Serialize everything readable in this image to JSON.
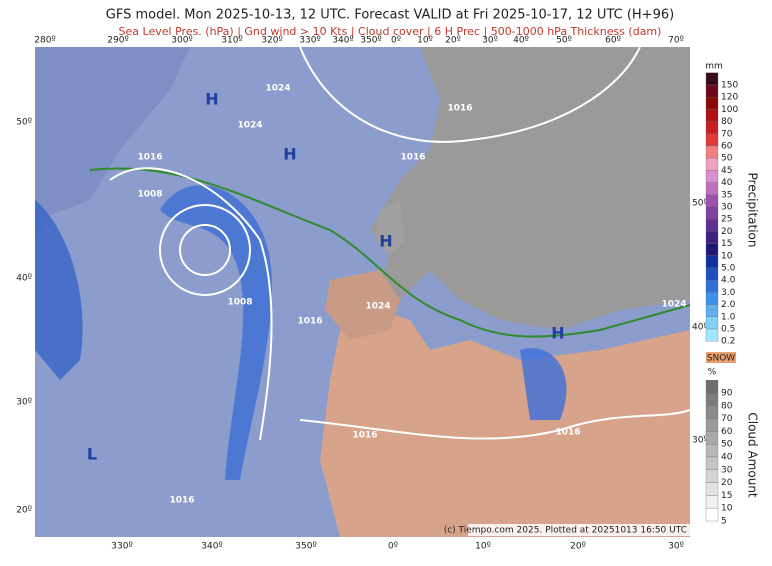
{
  "header": {
    "title": "GFS model. Mon 2025-10-13, 12 UTC. Forecast VALID at Fri 2025-10-17, 12 UTC (H+96)",
    "subtitle": "Sea Level Pres. (hPa) | Gnd wind > 10 Kts | Cloud cover | 6 H Prec | 500-1000 hPa Thickness (dam)"
  },
  "map": {
    "top_lon_labels": [
      "280º",
      "290º",
      "300º",
      "310º",
      "320º",
      "330º",
      "340º",
      "350º",
      "0º",
      "10º",
      "20º",
      "30º",
      "40º",
      "50º",
      "60º",
      "70º"
    ],
    "bottom_lon_labels": [
      "330º",
      "340º",
      "350º",
      "0º",
      "10º",
      "20º",
      "30º"
    ],
    "left_lat_labels": [
      "50º",
      "40º",
      "30º",
      "20º"
    ],
    "right_lat_labels": [
      "50º",
      "40º",
      "30º"
    ],
    "pressure_centers": [
      "H",
      "H",
      "H",
      "H",
      "L"
    ],
    "isobar_labels": [
      "1024",
      "1016",
      "1024",
      "1016",
      "1008",
      "1008",
      "1016",
      "1024",
      "1016",
      "1024",
      "1016",
      "1016",
      "1016"
    ],
    "credit": "(c) Tiempo.com 2025. Plotted at 20251013 16:50 UTC"
  },
  "precip_legend": {
    "unit": "mm",
    "title": "Precipitation",
    "labels": [
      "150",
      "120",
      "100",
      "80",
      "70",
      "60",
      "50",
      "45",
      "40",
      "35",
      "30",
      "25",
      "20",
      "15",
      "10",
      "5.0",
      "4.0",
      "3.0",
      "2.0",
      "1.0",
      "0.5",
      "0.2"
    ]
  },
  "cloud_legend": {
    "snow": "SNOW",
    "unit": "%",
    "title": "Cloud Amount",
    "labels": [
      "90",
      "80",
      "70",
      "60",
      "50",
      "40",
      "30",
      "20",
      "15",
      "10",
      "5"
    ]
  }
}
